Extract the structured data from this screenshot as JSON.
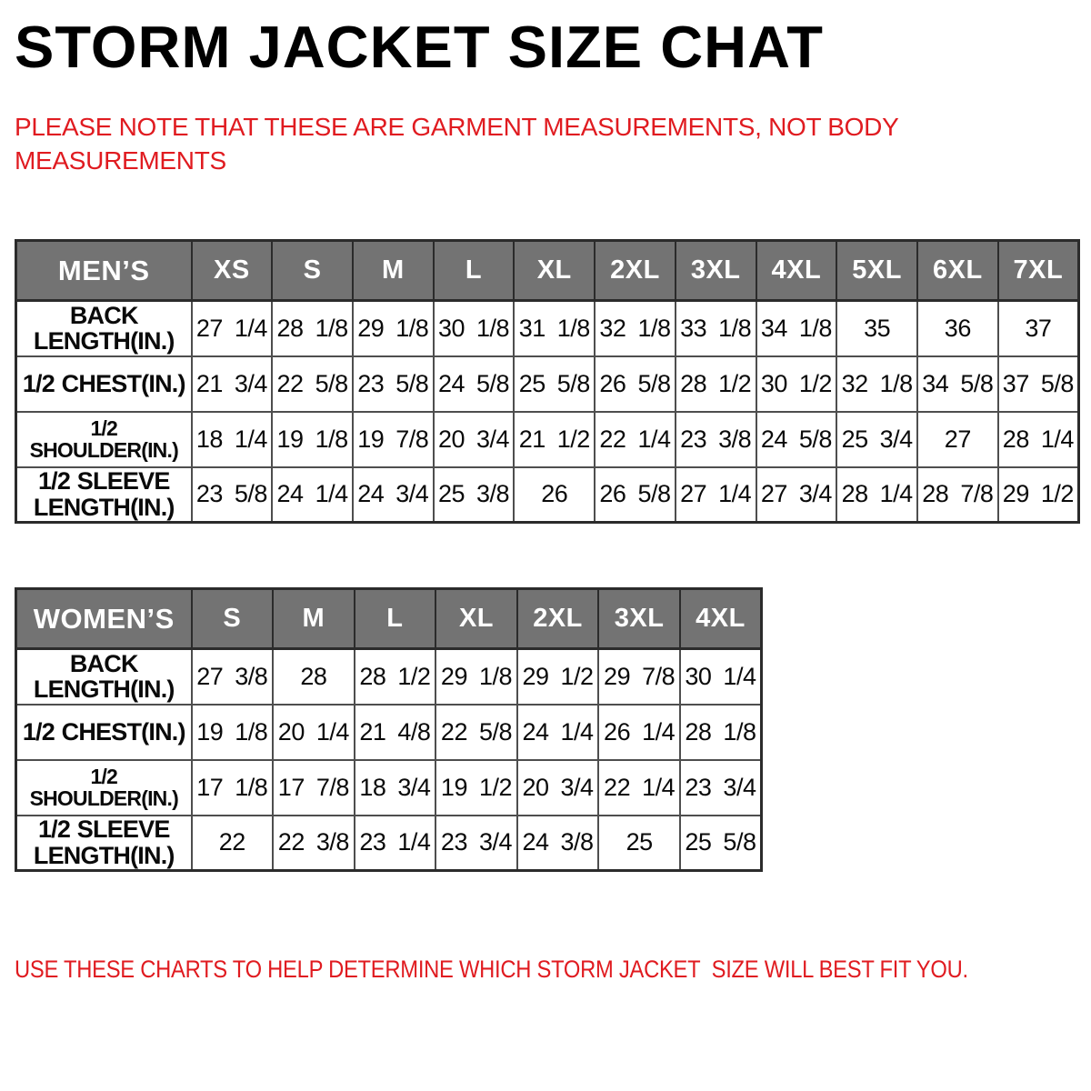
{
  "title": "STORM JACKET SIZE CHAT",
  "note_top": "PLEASE NOTE THAT THESE ARE GARMENT MEASUREMENTS, NOT BODY MEASUREMENTS",
  "note_bottom": "USE THESE CHARTS TO HELP DETERMINE WHICH STORM JACKET  SIZE WILL BEST FIT YOU.",
  "colors": {
    "accent_red": "#e01b20",
    "header_gray": "#737373",
    "border_dark": "#2b2b2b",
    "border_mid": "#4e4e4e"
  },
  "mens_table": {
    "name": "MEN’S",
    "columns": [
      "XS",
      "S",
      "M",
      "L",
      "XL",
      "2XL",
      "3XL",
      "4XL",
      "5XL",
      "6XL",
      "7XL"
    ],
    "rows": [
      {
        "label_lines": [
          "BACK",
          "LENGTH(IN.)"
        ],
        "values": [
          "27 1/4",
          "28 1/8",
          "29 1/8",
          "30 1/8",
          "31 1/8",
          "32 1/8",
          "33 1/8",
          "34 1/8",
          "35",
          "36",
          "37"
        ]
      },
      {
        "label_lines": [
          "1/2 CHEST(IN.)"
        ],
        "values": [
          "21 3/4",
          "22 5/8",
          "23 5/8",
          "24 5/8",
          "25 5/8",
          "26 5/8",
          "28 1/2",
          "30 1/2",
          "32 1/8",
          "34 5/8",
          "37 5/8"
        ]
      },
      {
        "label_lines": [
          "1/2 SHOULDER(IN.)"
        ],
        "values": [
          "18 1/4",
          "19 1/8",
          "19 7/8",
          "20 3/4",
          "21 1/2",
          "22 1/4",
          "23 3/8",
          "24 5/8",
          "25 3/4",
          "27",
          "28 1/4"
        ]
      },
      {
        "label_lines": [
          "1/2 SLEEVE",
          "LENGTH(IN.)"
        ],
        "values": [
          "23 5/8",
          "24 1/4",
          "24 3/4",
          "25 3/8",
          "26",
          "26 5/8",
          "27 1/4",
          "27 3/4",
          "28 1/4",
          "28 7/8",
          "29 1/2"
        ]
      }
    ]
  },
  "womens_table": {
    "name": "WOMEN’S",
    "columns": [
      "S",
      "M",
      "L",
      "XL",
      "2XL",
      "3XL",
      "4XL"
    ],
    "rows": [
      {
        "label_lines": [
          "BACK",
          "LENGTH(IN.)"
        ],
        "values": [
          "27 3/8",
          "28",
          "28 1/2",
          "29 1/8",
          "29 1/2",
          "29 7/8",
          "30 1/4"
        ]
      },
      {
        "label_lines": [
          "1/2 CHEST(IN.)"
        ],
        "values": [
          "19 1/8",
          "20 1/4",
          "21 4/8",
          "22 5/8",
          "24 1/4",
          "26 1/4",
          "28 1/8"
        ]
      },
      {
        "label_lines": [
          "1/2 SHOULDER(IN.)"
        ],
        "values": [
          "17 1/8",
          "17 7/8",
          "18 3/4",
          "19 1/2",
          "20 3/4",
          "22 1/4",
          "23 3/4"
        ]
      },
      {
        "label_lines": [
          "1/2 SLEEVE",
          "LENGTH(IN.)"
        ],
        "values": [
          "22",
          "22 3/8",
          "23 1/4",
          "23 3/4",
          "24 3/8",
          "25",
          "25 5/8"
        ]
      }
    ]
  }
}
